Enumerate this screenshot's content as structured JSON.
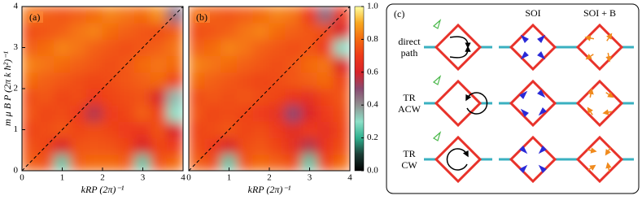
{
  "chart_data": [
    {
      "type": "heatmap",
      "title": "(a)",
      "x_label": "kRP (2π)⁻¹",
      "y_label": "m μ B P (2π k ħ²)⁻¹",
      "xlim": [
        0,
        4
      ],
      "ylim": [
        0,
        4
      ],
      "xticks": [
        0,
        1,
        2,
        3,
        4
      ],
      "yticks": [
        0,
        1,
        2,
        3,
        4
      ],
      "z": [
        [
          0.78,
          0.75,
          0.25,
          0.78,
          0.8,
          0.8,
          0.78,
          0.25,
          0.75,
          0.8
        ],
        [
          0.75,
          0.72,
          0.6,
          0.75,
          0.76,
          0.75,
          0.72,
          0.6,
          0.72,
          0.7
        ],
        [
          0.72,
          0.74,
          0.76,
          0.72,
          0.74,
          0.72,
          0.7,
          0.68,
          0.75,
          0.6
        ],
        [
          0.76,
          0.72,
          0.74,
          0.7,
          0.55,
          0.7,
          0.72,
          0.78,
          0.72,
          0.3
        ],
        [
          0.74,
          0.76,
          0.72,
          0.74,
          0.7,
          0.72,
          0.74,
          0.75,
          0.6,
          0.35
        ],
        [
          0.8,
          0.78,
          0.76,
          0.74,
          0.72,
          0.74,
          0.76,
          0.78,
          0.8,
          0.72
        ],
        [
          0.84,
          0.82,
          0.8,
          0.78,
          0.76,
          0.74,
          0.76,
          0.8,
          0.82,
          0.8
        ],
        [
          0.78,
          0.8,
          0.84,
          0.82,
          0.78,
          0.76,
          0.74,
          0.76,
          0.78,
          0.82
        ],
        [
          0.74,
          0.76,
          0.78,
          0.82,
          0.84,
          0.8,
          0.78,
          0.76,
          0.74,
          0.78
        ],
        [
          0.82,
          0.78,
          0.76,
          0.78,
          0.8,
          0.84,
          0.82,
          0.8,
          0.86,
          0.45
        ]
      ],
      "colormap": [
        "#000000",
        "#1c3d36",
        "#2fb08e",
        "#8ee0c8",
        "#909090",
        "#8a4a70",
        "#d8242a",
        "#ee3a1a",
        "#f46a10",
        "#f8a820",
        "#ffffa0"
      ]
    },
    {
      "type": "heatmap",
      "title": "(b)",
      "x_label": "kRP (2π)⁻¹",
      "xlim": [
        0,
        4
      ],
      "ylim": [
        0,
        4
      ],
      "xticks": [
        0,
        1,
        2,
        3,
        4
      ],
      "z": [
        [
          0.78,
          0.74,
          0.25,
          0.76,
          0.8,
          0.78,
          0.74,
          0.25,
          0.72,
          0.8
        ],
        [
          0.74,
          0.7,
          0.6,
          0.74,
          0.76,
          0.72,
          0.66,
          0.55,
          0.68,
          0.74
        ],
        [
          0.72,
          0.74,
          0.76,
          0.72,
          0.74,
          0.7,
          0.64,
          0.7,
          0.66,
          0.72
        ],
        [
          0.76,
          0.72,
          0.74,
          0.72,
          0.7,
          0.66,
          0.5,
          0.62,
          0.7,
          0.74
        ],
        [
          0.74,
          0.76,
          0.74,
          0.76,
          0.74,
          0.72,
          0.68,
          0.66,
          0.72,
          0.76
        ],
        [
          0.8,
          0.78,
          0.76,
          0.74,
          0.72,
          0.74,
          0.76,
          0.78,
          0.8,
          0.72
        ],
        [
          0.84,
          0.82,
          0.8,
          0.78,
          0.76,
          0.74,
          0.76,
          0.8,
          0.82,
          0.6
        ],
        [
          0.78,
          0.8,
          0.84,
          0.82,
          0.78,
          0.76,
          0.74,
          0.76,
          0.7,
          0.3
        ],
        [
          0.74,
          0.76,
          0.78,
          0.82,
          0.84,
          0.8,
          0.78,
          0.76,
          0.74,
          0.6
        ],
        [
          0.8,
          0.78,
          0.76,
          0.78,
          0.8,
          0.84,
          0.82,
          0.7,
          0.45,
          0.7
        ]
      ],
      "colormap": [
        "#000000",
        "#1c3d36",
        "#2fb08e",
        "#8ee0c8",
        "#909090",
        "#8a4a70",
        "#d8242a",
        "#ee3a1a",
        "#f46a10",
        "#f8a820",
        "#ffffa0"
      ],
      "colorbar": {
        "lim": [
          0,
          1
        ],
        "ticks": [
          {
            "value": 0,
            "label": "0.0"
          },
          0.2,
          0.4,
          0.6,
          0.8,
          {
            "value": 1,
            "label": "1.0"
          }
        ]
      }
    }
  ],
  "diagram": {
    "title": "(c)",
    "columns": [
      "SOI",
      "SOI + B"
    ],
    "rows": [
      [
        "direct",
        "path"
      ],
      [
        "TR",
        "ACW"
      ],
      [
        "TR",
        "CW"
      ]
    ]
  }
}
